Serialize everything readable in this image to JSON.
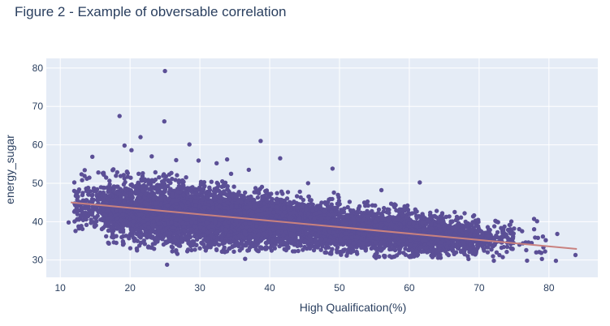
{
  "chart_data": {
    "type": "scatter",
    "title": "Figure 2 - Example of obversable correlation",
    "xlabel": "High Qualification(%)",
    "ylabel": "energy_sugar",
    "xlim": [
      8,
      87
    ],
    "ylim": [
      25.5,
      82.5
    ],
    "xticks": [
      10,
      20,
      30,
      40,
      50,
      60,
      70,
      80
    ],
    "yticks": [
      30,
      40,
      50,
      60,
      70,
      80
    ],
    "grid": true,
    "legend": "none",
    "colors": {
      "points": "#5b4f96",
      "trendline": "#c9817f",
      "plot_background": "#e5ecf6",
      "grid": "#ffffff"
    },
    "series": [
      {
        "type": "scatter",
        "points": [
          [
            25.0,
            79.2
          ],
          [
            18.5,
            67.5
          ],
          [
            24.9,
            66.1
          ],
          [
            21.5,
            62.0
          ],
          [
            38.7,
            61.0
          ],
          [
            19.2,
            59.8
          ],
          [
            28.5,
            60.1
          ],
          [
            20.2,
            58.6
          ],
          [
            23.1,
            57.0
          ],
          [
            41.5,
            56.5
          ],
          [
            32.4,
            55.2
          ],
          [
            26.6,
            56.0
          ],
          [
            29.8,
            55.9
          ],
          [
            33.9,
            56.2
          ],
          [
            49.0,
            53.8
          ],
          [
            14.6,
            56.9
          ],
          [
            13.5,
            53.4
          ],
          [
            17.5,
            53.4
          ],
          [
            16.1,
            52.6
          ],
          [
            22.1,
            51.0
          ],
          [
            61.5,
            50.2
          ],
          [
            78.3,
            40.1
          ],
          [
            79.2,
            33.3
          ],
          [
            81.2,
            36.8
          ],
          [
            79.0,
            30.3
          ],
          [
            81.0,
            29.8
          ],
          [
            83.8,
            31.3
          ],
          [
            25.3,
            28.8
          ],
          [
            19.0,
            34.0
          ],
          [
            21.0,
            32.5
          ],
          [
            11.2,
            39.8
          ],
          [
            12.0,
            48.0
          ],
          [
            75.0,
            38.2
          ],
          [
            72.5,
            40.0
          ],
          [
            70.0,
            37.5
          ],
          [
            73.2,
            33.2
          ],
          [
            66.5,
            42.5
          ],
          [
            56.0,
            48.2
          ],
          [
            45.5,
            50.0
          ],
          [
            37.0,
            53.5
          ]
        ]
      },
      {
        "type": "line",
        "x": [
          11.5,
          84.0
        ],
        "y": [
          45.0,
          32.9
        ]
      }
    ],
    "cloud": [
      {
        "x_from": 12,
        "x_to": 16,
        "y_mean": 44.0,
        "y_sd": 3.2,
        "count": 140
      },
      {
        "x_from": 16,
        "x_to": 20,
        "y_mean": 43.2,
        "y_sd": 3.6,
        "count": 420
      },
      {
        "x_from": 20,
        "x_to": 25,
        "y_mean": 42.4,
        "y_sd": 3.8,
        "count": 820
      },
      {
        "x_from": 25,
        "x_to": 30,
        "y_mean": 41.6,
        "y_sd": 3.7,
        "count": 980
      },
      {
        "x_from": 30,
        "x_to": 35,
        "y_mean": 41.0,
        "y_sd": 3.5,
        "count": 980
      },
      {
        "x_from": 35,
        "x_to": 40,
        "y_mean": 40.3,
        "y_sd": 3.2,
        "count": 900
      },
      {
        "x_from": 40,
        "x_to": 45,
        "y_mean": 39.7,
        "y_sd": 3.0,
        "count": 760
      },
      {
        "x_from": 45,
        "x_to": 50,
        "y_mean": 38.9,
        "y_sd": 2.8,
        "count": 640
      },
      {
        "x_from": 50,
        "x_to": 55,
        "y_mean": 38.0,
        "y_sd": 2.7,
        "count": 560
      },
      {
        "x_from": 55,
        "x_to": 60,
        "y_mean": 37.3,
        "y_sd": 2.6,
        "count": 600
      },
      {
        "x_from": 60,
        "x_to": 65,
        "y_mean": 36.6,
        "y_sd": 2.5,
        "count": 620
      },
      {
        "x_from": 65,
        "x_to": 70,
        "y_mean": 35.8,
        "y_sd": 2.3,
        "count": 360
      },
      {
        "x_from": 70,
        "x_to": 75,
        "y_mean": 35.0,
        "y_sd": 2.0,
        "count": 120
      },
      {
        "x_from": 75,
        "x_to": 80,
        "y_mean": 34.5,
        "y_sd": 2.2,
        "count": 20
      }
    ]
  }
}
